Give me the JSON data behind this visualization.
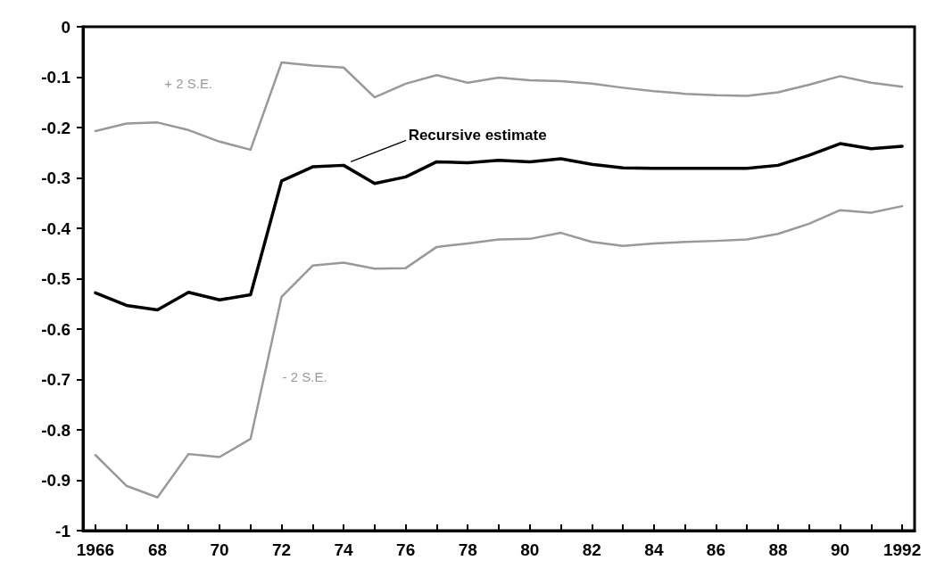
{
  "chart_data": {
    "type": "line",
    "x": [
      1966,
      1967,
      1968,
      1969,
      1970,
      1971,
      1972,
      1973,
      1974,
      1975,
      1976,
      1977,
      1978,
      1979,
      1980,
      1981,
      1982,
      1983,
      1984,
      1985,
      1986,
      1987,
      1988,
      1989,
      1990,
      1991,
      1992
    ],
    "series": [
      {
        "name": "+ 2 S.E.",
        "color": "#999999",
        "values": [
          -0.207,
          -0.192,
          -0.19,
          -0.205,
          -0.228,
          -0.244,
          -0.071,
          -0.077,
          -0.081,
          -0.14,
          -0.113,
          -0.096,
          -0.111,
          -0.101,
          -0.106,
          -0.108,
          -0.113,
          -0.121,
          -0.128,
          -0.133,
          -0.136,
          -0.137,
          -0.13,
          -0.115,
          -0.098,
          -0.111,
          -0.119
        ]
      },
      {
        "name": "Recursive estimate",
        "color": "#000000",
        "values": [
          -0.528,
          -0.553,
          -0.562,
          -0.527,
          -0.542,
          -0.532,
          -0.306,
          -0.278,
          -0.275,
          -0.311,
          -0.298,
          -0.268,
          -0.27,
          -0.265,
          -0.268,
          -0.262,
          -0.273,
          -0.28,
          -0.281,
          -0.281,
          -0.281,
          -0.281,
          -0.275,
          -0.255,
          -0.232,
          -0.242,
          -0.237
        ]
      },
      {
        "name": "- 2 S.E.",
        "color": "#999999",
        "values": [
          -0.85,
          -0.911,
          -0.934,
          -0.848,
          -0.854,
          -0.818,
          -0.536,
          -0.474,
          -0.468,
          -0.48,
          -0.479,
          -0.437,
          -0.43,
          -0.422,
          -0.421,
          -0.409,
          -0.427,
          -0.435,
          -0.43,
          -0.427,
          -0.425,
          -0.422,
          -0.411,
          -0.391,
          -0.364,
          -0.369,
          -0.356
        ]
      }
    ],
    "xlim": [
      1965.6,
      1992.4
    ],
    "xticks": [
      {
        "value": 1966,
        "label": "1966"
      },
      {
        "value": 1967,
        "label": null
      },
      {
        "value": 1968,
        "label": "68"
      },
      {
        "value": 1969,
        "label": null
      },
      {
        "value": 1970,
        "label": "70"
      },
      {
        "value": 1971,
        "label": null
      },
      {
        "value": 1972,
        "label": "72"
      },
      {
        "value": 1973,
        "label": null
      },
      {
        "value": 1974,
        "label": "74"
      },
      {
        "value": 1975,
        "label": null
      },
      {
        "value": 1976,
        "label": "76"
      },
      {
        "value": 1977,
        "label": null
      },
      {
        "value": 1978,
        "label": "78"
      },
      {
        "value": 1979,
        "label": null
      },
      {
        "value": 1980,
        "label": "80"
      },
      {
        "value": 1981,
        "label": null
      },
      {
        "value": 1982,
        "label": "82"
      },
      {
        "value": 1983,
        "label": null
      },
      {
        "value": 1984,
        "label": "84"
      },
      {
        "value": 1985,
        "label": null
      },
      {
        "value": 1986,
        "label": "86"
      },
      {
        "value": 1987,
        "label": null
      },
      {
        "value": 1988,
        "label": "88"
      },
      {
        "value": 1989,
        "label": null
      },
      {
        "value": 1990,
        "label": "90"
      },
      {
        "value": 1991,
        "label": null
      },
      {
        "value": 1992,
        "label": "1992"
      }
    ],
    "ylim": [
      -1,
      0
    ],
    "yticks": [
      0,
      -0.1,
      -0.2,
      -0.3,
      -0.4,
      -0.5,
      -0.6,
      -0.7,
      -0.8,
      -0.9,
      -1
    ],
    "grid": false,
    "legend": false,
    "marker": "none",
    "line_style": "solid"
  }
}
